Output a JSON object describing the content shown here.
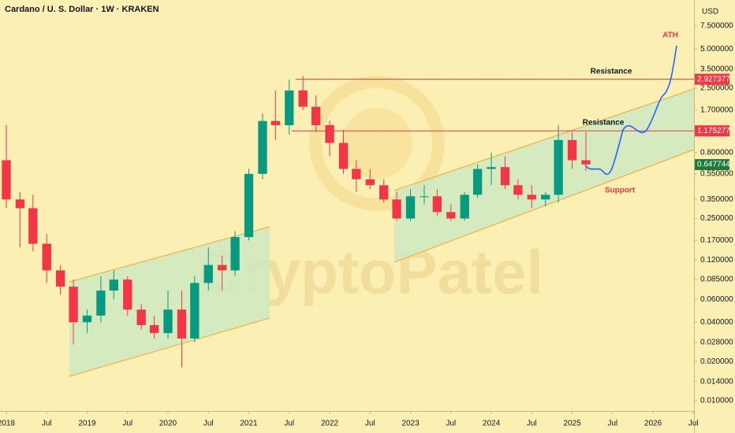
{
  "chart_data": {
    "type": "candlestick",
    "title": "Cardano / U. S. Dollar · 1W · KRAKEN",
    "currency": "USD",
    "watermark": "CryptoPatel",
    "annotations": [
      "ATH",
      "Resistance",
      "Resistance",
      "Support"
    ],
    "log_scale": true,
    "up_color": "#089981",
    "down_color": "#f23645",
    "x": [
      2018,
      2018.17,
      2018.33,
      2018.5,
      2018.67,
      2018.83,
      2019,
      2019.17,
      2019.33,
      2019.5,
      2019.67,
      2019.83,
      2020,
      2020.17,
      2020.33,
      2020.5,
      2020.67,
      2020.83,
      2021,
      2021.17,
      2021.33,
      2021.5,
      2021.67,
      2021.83,
      2022,
      2022.17,
      2022.33,
      2022.5,
      2022.67,
      2022.83,
      2023,
      2023.17,
      2023.33,
      2023.5,
      2023.67,
      2023.83,
      2024,
      2024.17,
      2024.33,
      2024.5,
      2024.67,
      2024.83,
      2025,
      2025.17
    ],
    "open": [
      0.7,
      0.35,
      0.3,
      0.16,
      0.1,
      0.075,
      0.04,
      0.045,
      0.07,
      0.085,
      0.05,
      0.038,
      0.033,
      0.05,
      0.03,
      0.08,
      0.11,
      0.1,
      0.18,
      0.55,
      1.4,
      1.3,
      2.4,
      1.8,
      1.3,
      0.95,
      0.6,
      0.5,
      0.45,
      0.35,
      0.25,
      0.37,
      0.37,
      0.28,
      0.25,
      0.38,
      0.6,
      0.62,
      0.45,
      0.38,
      0.35,
      0.38,
      1.0,
      0.7
    ],
    "high": [
      1.3,
      0.4,
      0.38,
      0.19,
      0.11,
      0.085,
      0.05,
      0.09,
      0.1,
      0.09,
      0.055,
      0.045,
      0.07,
      0.07,
      0.09,
      0.15,
      0.13,
      0.2,
      0.6,
      1.6,
      2.4,
      2.9,
      3.1,
      2.2,
      1.4,
      1.2,
      0.7,
      0.6,
      0.5,
      0.4,
      0.42,
      0.45,
      0.42,
      0.32,
      0.4,
      0.65,
      0.8,
      0.75,
      0.5,
      0.45,
      0.4,
      1.3,
      1.15,
      1.15
    ],
    "low": [
      0.3,
      0.15,
      0.14,
      0.08,
      0.065,
      0.027,
      0.033,
      0.04,
      0.06,
      0.045,
      0.035,
      0.03,
      0.03,
      0.018,
      0.028,
      0.07,
      0.07,
      0.09,
      0.17,
      0.5,
      1.0,
      1.1,
      1.7,
      1.15,
      0.75,
      0.55,
      0.4,
      0.42,
      0.33,
      0.24,
      0.24,
      0.32,
      0.26,
      0.24,
      0.24,
      0.36,
      0.45,
      0.42,
      0.35,
      0.3,
      0.31,
      0.33,
      0.6,
      0.58
    ],
    "close": [
      0.35,
      0.3,
      0.16,
      0.1,
      0.075,
      0.04,
      0.045,
      0.07,
      0.085,
      0.05,
      0.038,
      0.033,
      0.05,
      0.03,
      0.08,
      0.11,
      0.1,
      0.18,
      0.55,
      1.4,
      1.3,
      2.4,
      1.8,
      1.3,
      0.95,
      0.6,
      0.5,
      0.45,
      0.35,
      0.25,
      0.37,
      0.37,
      0.28,
      0.25,
      0.38,
      0.6,
      0.62,
      0.45,
      0.38,
      0.35,
      0.38,
      1.0,
      0.7,
      0.65
    ],
    "price_lines": [
      {
        "value": 2.927377,
        "color": "#f23645"
      },
      {
        "value": 1.175277,
        "color": "#f23645"
      },
      {
        "value": 0.647744,
        "color": "#1e7b3a"
      }
    ],
    "xlim": [
      2017.922,
      2026.507
    ],
    "ylim": [
      0.00834,
      11.87
    ],
    "xticks": [
      2018,
      {
        "value": 2018.5,
        "label": "Jul"
      },
      2019,
      {
        "value": 2019.5,
        "label": "Jul"
      },
      2020,
      {
        "value": 2020.5,
        "label": "Jul"
      },
      2021,
      {
        "value": 2021.5,
        "label": "Jul"
      },
      2022,
      {
        "value": 2022.5,
        "label": "Jul"
      },
      2023,
      {
        "value": 2023.5,
        "label": "Jul"
      },
      2024,
      {
        "value": 2024.5,
        "label": "Jul"
      },
      2025,
      {
        "value": 2025.5,
        "label": "Jul"
      },
      2026,
      {
        "value": 2026.5,
        "label": "Jul"
      }
    ],
    "yticks": [
      {
        "value": 7.5,
        "label": "7.500000"
      },
      {
        "value": 5,
        "label": "5.000000"
      },
      {
        "value": 3.5,
        "label": "3.500000"
      },
      {
        "value": 2.5,
        "label": "2.500000"
      },
      {
        "value": 1.7,
        "label": "1.700000"
      },
      {
        "value": 0.8,
        "label": "0.800000"
      },
      {
        "value": 0.55,
        "label": "0.550000"
      },
      {
        "value": 0.35,
        "label": "0.350000"
      },
      {
        "value": 0.25,
        "label": "0.250000"
      },
      {
        "value": 0.17,
        "label": "0.170000"
      },
      {
        "value": 0.12,
        "label": "0.120000"
      },
      {
        "value": 0.085,
        "label": "0.085000"
      },
      {
        "value": 0.06,
        "label": "0.060000"
      },
      {
        "value": 0.04,
        "label": "0.040000"
      },
      {
        "value": 0.028,
        "label": "0.028000"
      },
      {
        "value": 0.02,
        "label": "0.020000"
      },
      {
        "value": 0.014,
        "label": "0.014000"
      },
      {
        "value": 0.01,
        "label": "0.010000"
      }
    ]
  }
}
